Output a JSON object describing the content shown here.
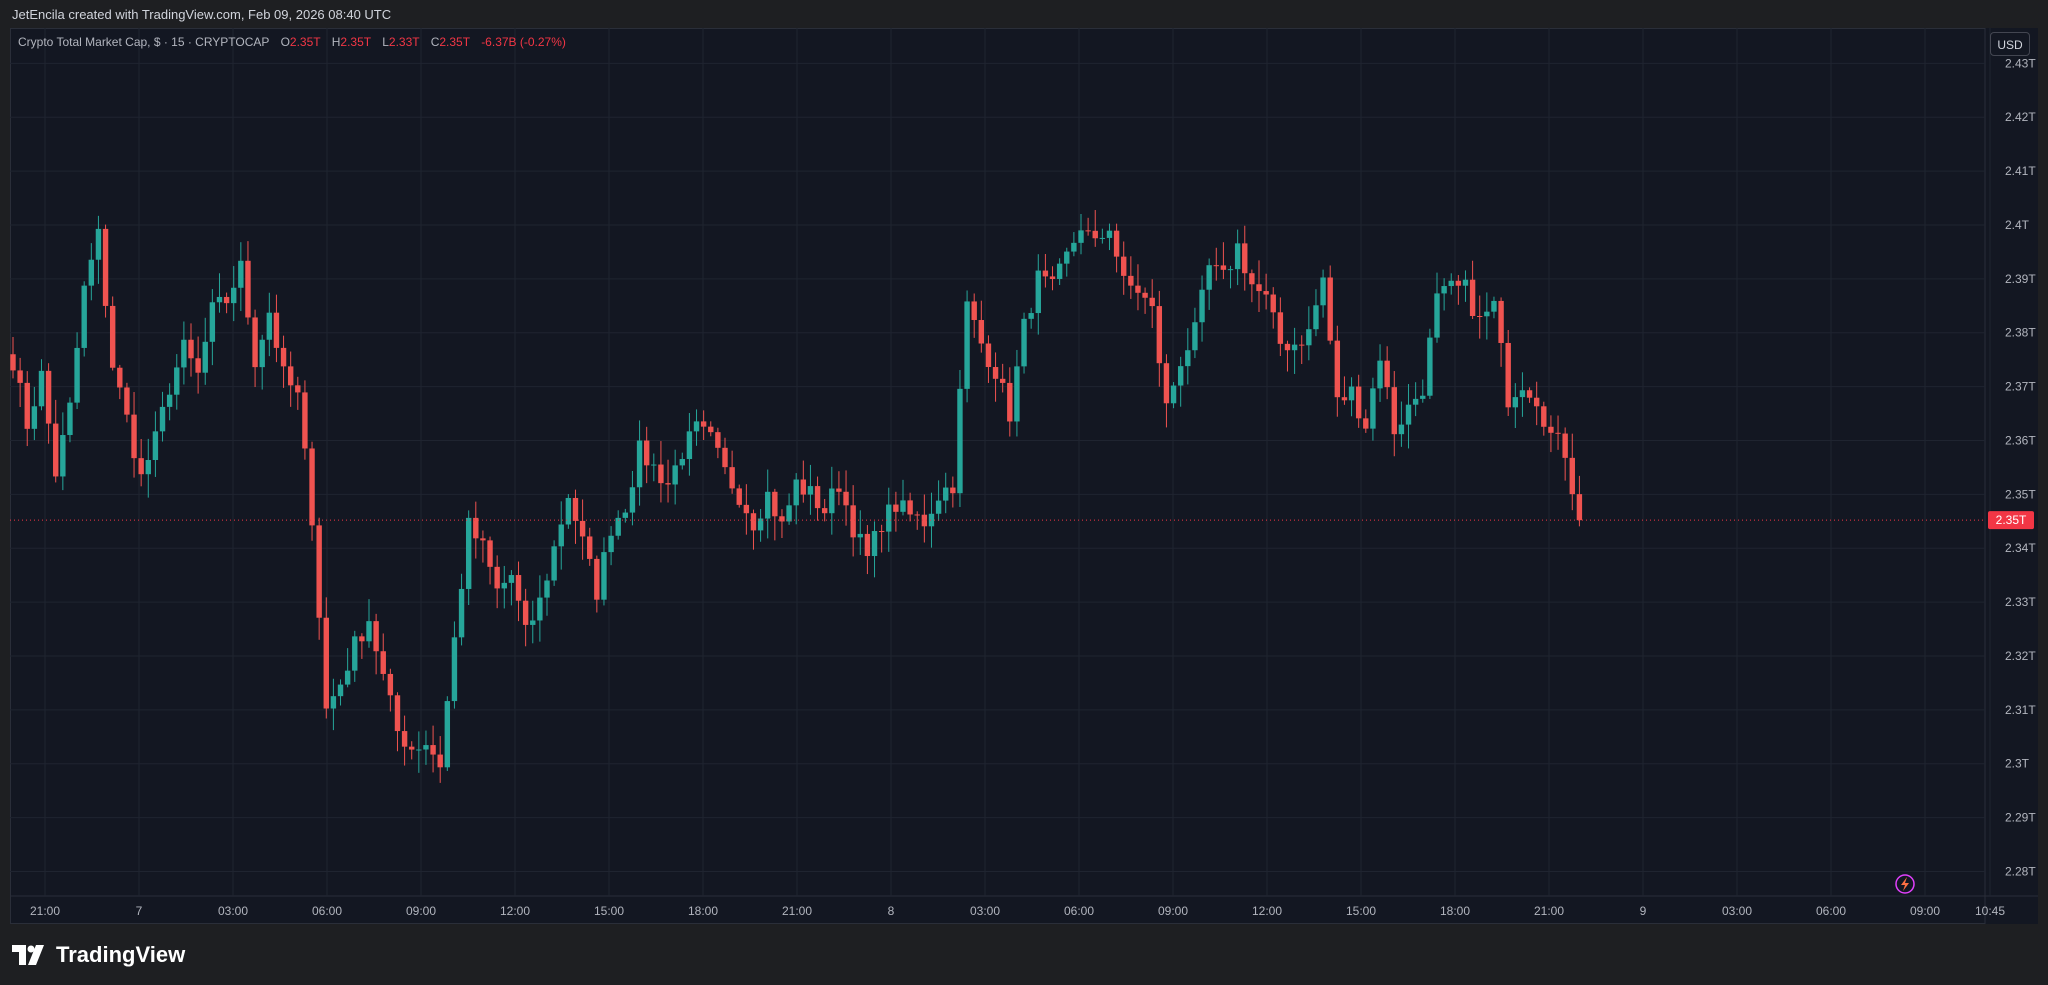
{
  "header": {
    "attribution": "JetEncila created with TradingView.com, Feb 09, 2026 08:40 UTC"
  },
  "legend": {
    "symbol": "Crypto Total Market Cap, $ · 15 · CRYPTOCAP",
    "open_label": "O",
    "open": "2.35T",
    "high_label": "H",
    "high": "2.35T",
    "low_label": "L",
    "low": "2.33T",
    "close_label": "C",
    "close": "2.35T",
    "change": "-6.37B (-0.27%)"
  },
  "currency_button": "USD",
  "brand": "TradingView",
  "colors": {
    "up": "#26a69a",
    "down": "#ef5350",
    "background": "#131722",
    "grid": "#1f2430",
    "price_line": "#f23645"
  },
  "icons": {
    "logo": "tradingview-logo-icon",
    "lightning": "lightning-icon"
  },
  "chart_data": {
    "type": "candlestick",
    "y_unit": "T",
    "ylim": [
      2.276,
      2.436
    ],
    "y_ticks": [
      "2.28T",
      "2.29T",
      "2.3T",
      "2.31T",
      "2.32T",
      "2.33T",
      "2.34T",
      "2.35T",
      "2.36T",
      "2.37T",
      "2.38T",
      "2.39T",
      "2.4T",
      "2.41T",
      "2.42T",
      "2.43T"
    ],
    "x_ticks": [
      "21:00",
      "7",
      "03:00",
      "06:00",
      "09:00",
      "12:00",
      "15:00",
      "18:00",
      "21:00",
      "8",
      "03:00",
      "06:00",
      "09:00",
      "12:00",
      "15:00",
      "18:00",
      "21:00",
      "9",
      "03:00",
      "06:00",
      "09:00",
      "10:45"
    ],
    "grid": true,
    "last_price": 2.3452,
    "last_price_label": "2.35T",
    "anchors": [
      [
        0,
        2.375
      ],
      [
        2,
        2.363
      ],
      [
        4,
        2.372
      ],
      [
        6,
        2.354
      ],
      [
        8,
        2.366
      ],
      [
        10,
        2.388
      ],
      [
        12,
        2.398
      ],
      [
        14,
        2.374
      ],
      [
        16,
        2.364
      ],
      [
        18,
        2.353
      ],
      [
        20,
        2.36
      ],
      [
        22,
        2.37
      ],
      [
        24,
        2.377
      ],
      [
        26,
        2.372
      ],
      [
        28,
        2.384
      ],
      [
        30,
        2.386
      ],
      [
        32,
        2.392
      ],
      [
        34,
        2.375
      ],
      [
        36,
        2.384
      ],
      [
        38,
        2.372
      ],
      [
        40,
        2.368
      ],
      [
        42,
        2.346
      ],
      [
        44,
        2.31
      ],
      [
        46,
        2.315
      ],
      [
        48,
        2.322
      ],
      [
        50,
        2.327
      ],
      [
        52,
        2.316
      ],
      [
        54,
        2.306
      ],
      [
        56,
        2.303
      ],
      [
        58,
        2.304
      ],
      [
        60,
        2.3
      ],
      [
        62,
        2.323
      ],
      [
        64,
        2.344
      ],
      [
        66,
        2.34
      ],
      [
        68,
        2.332
      ],
      [
        70,
        2.335
      ],
      [
        72,
        2.324
      ],
      [
        74,
        2.33
      ],
      [
        76,
        2.34
      ],
      [
        78,
        2.35
      ],
      [
        80,
        2.341
      ],
      [
        82,
        2.332
      ],
      [
        84,
        2.344
      ],
      [
        86,
        2.348
      ],
      [
        88,
        2.358
      ],
      [
        90,
        2.355
      ],
      [
        92,
        2.352
      ],
      [
        94,
        2.358
      ],
      [
        96,
        2.362
      ],
      [
        98,
        2.36
      ],
      [
        100,
        2.354
      ],
      [
        102,
        2.35
      ],
      [
        104,
        2.345
      ],
      [
        106,
        2.35
      ],
      [
        108,
        2.344
      ],
      [
        110,
        2.352
      ],
      [
        112,
        2.35
      ],
      [
        114,
        2.347
      ],
      [
        116,
        2.352
      ],
      [
        118,
        2.344
      ],
      [
        120,
        2.338
      ],
      [
        122,
        2.345
      ],
      [
        124,
        2.348
      ],
      [
        126,
        2.346
      ],
      [
        128,
        2.345
      ],
      [
        130,
        2.35
      ],
      [
        132,
        2.352
      ],
      [
        134,
        2.385
      ],
      [
        136,
        2.378
      ],
      [
        138,
        2.373
      ],
      [
        140,
        2.365
      ],
      [
        142,
        2.381
      ],
      [
        144,
        2.39
      ],
      [
        146,
        2.388
      ],
      [
        148,
        2.394
      ],
      [
        150,
        2.4
      ],
      [
        152,
        2.396
      ],
      [
        154,
        2.4
      ],
      [
        156,
        2.389
      ],
      [
        158,
        2.388
      ],
      [
        160,
        2.384
      ],
      [
        162,
        2.366
      ],
      [
        164,
        2.375
      ],
      [
        166,
        2.38
      ],
      [
        168,
        2.392
      ],
      [
        170,
        2.39
      ],
      [
        172,
        2.396
      ],
      [
        174,
        2.389
      ],
      [
        176,
        2.386
      ],
      [
        178,
        2.378
      ],
      [
        180,
        2.378
      ],
      [
        182,
        2.38
      ],
      [
        184,
        2.39
      ],
      [
        186,
        2.367
      ],
      [
        188,
        2.369
      ],
      [
        190,
        2.363
      ],
      [
        192,
        2.376
      ],
      [
        194,
        2.362
      ],
      [
        196,
        2.366
      ],
      [
        198,
        2.37
      ],
      [
        200,
        2.386
      ],
      [
        202,
        2.388
      ],
      [
        204,
        2.388
      ],
      [
        206,
        2.382
      ],
      [
        208,
        2.385
      ],
      [
        210,
        2.368
      ],
      [
        212,
        2.371
      ],
      [
        214,
        2.368
      ],
      [
        216,
        2.361
      ],
      [
        218,
        2.358
      ],
      [
        220,
        2.345
      ]
    ]
  }
}
